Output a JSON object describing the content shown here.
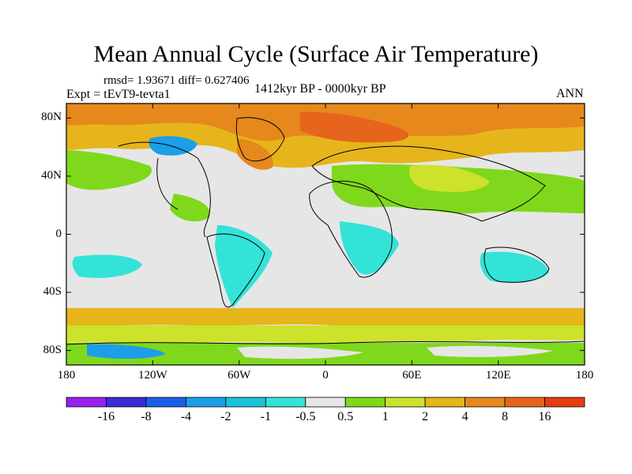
{
  "title": "Mean Annual Cycle (Surface Air Temperature)",
  "stats": "rmsd= 1.93671 diff= 0.627406",
  "experiment": "Expt = tEvT9-tevta1",
  "period": "1412kyr BP - 0000kyr BP",
  "season": "ANN",
  "lat_labels": [
    "80N",
    "40N",
    "0",
    "40S",
    "80S"
  ],
  "lon_labels": [
    "180",
    "120W",
    "60W",
    "0",
    "60E",
    "120E",
    "180"
  ],
  "colorbar": {
    "labels": [
      "-16",
      "-8",
      "-4",
      "-2",
      "-1",
      "-0.5",
      "0.5",
      "1",
      "2",
      "4",
      "8",
      "16"
    ],
    "colors": [
      "#9a1eef",
      "#3a2bd6",
      "#1c5fe6",
      "#1c9ee8",
      "#1cc4da",
      "#33e3d8",
      "#e6e6e6",
      "#7fd81c",
      "#cde22a",
      "#e6b51c",
      "#e6881c",
      "#e6641c",
      "#e63c10"
    ]
  },
  "map": {
    "ocean_color": "#e6e6e6",
    "coastline_color": "#000000"
  }
}
